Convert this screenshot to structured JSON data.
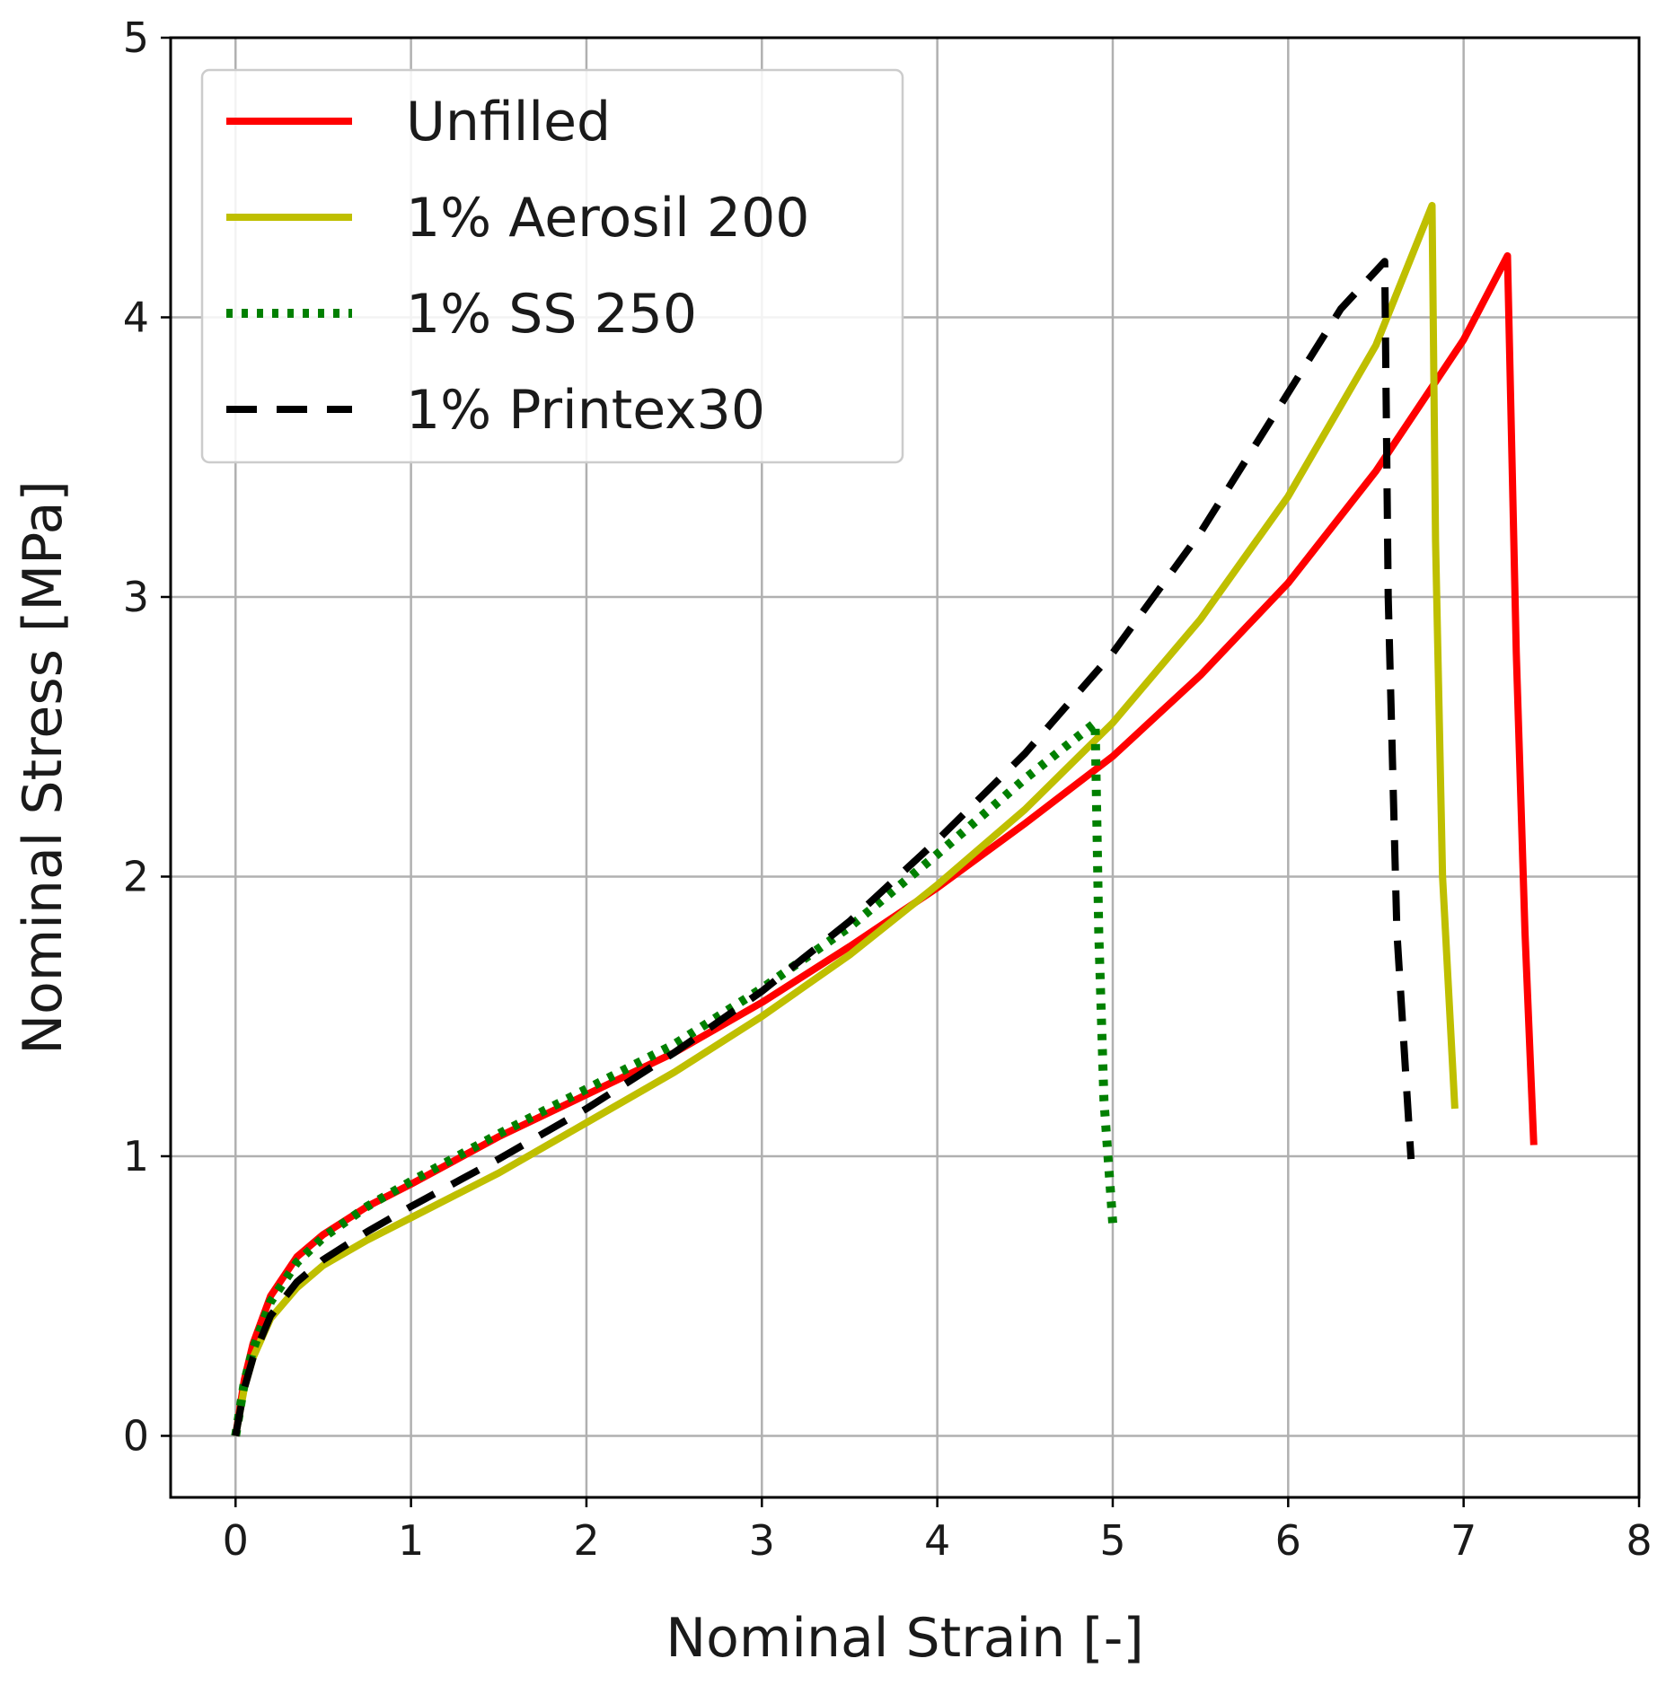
{
  "chart_data": {
    "type": "line",
    "xlabel": "Nominal Strain [-]",
    "ylabel": "Nominal Stress [MPa]",
    "xlim": [
      -0.37,
      8
    ],
    "ylim": [
      -0.22,
      5
    ],
    "xticks": [
      "0",
      "1",
      "2",
      "3",
      "4",
      "5",
      "6",
      "7",
      "8"
    ],
    "yticks": [
      "0",
      "1",
      "2",
      "3",
      "4",
      "5"
    ],
    "grid": true,
    "legend_position": "top-left",
    "series": [
      {
        "name": "Unfilled",
        "color": "#ff0000",
        "style": "solid",
        "x": [
          0,
          0.05,
          0.1,
          0.2,
          0.35,
          0.5,
          0.75,
          1.0,
          1.5,
          2.0,
          2.5,
          3.0,
          3.5,
          4.0,
          4.5,
          5.0,
          5.5,
          6.0,
          6.5,
          7.0,
          7.25,
          7.3,
          7.35,
          7.4
        ],
        "y": [
          0,
          0.2,
          0.33,
          0.5,
          0.64,
          0.72,
          0.82,
          0.9,
          1.07,
          1.22,
          1.37,
          1.55,
          1.75,
          1.96,
          2.19,
          2.43,
          2.72,
          3.05,
          3.45,
          3.92,
          4.22,
          2.8,
          1.8,
          1.04
        ]
      },
      {
        "name": "1% Aerosil 200",
        "color": "#bfbf00",
        "style": "solid",
        "x": [
          0,
          0.05,
          0.1,
          0.2,
          0.35,
          0.5,
          0.75,
          1.0,
          1.5,
          2.0,
          2.5,
          3.0,
          3.5,
          4.0,
          4.5,
          5.0,
          5.5,
          6.0,
          6.5,
          6.82,
          6.84,
          6.88,
          6.95
        ],
        "y": [
          0,
          0.17,
          0.28,
          0.42,
          0.53,
          0.61,
          0.7,
          0.78,
          0.94,
          1.12,
          1.3,
          1.5,
          1.72,
          1.97,
          2.24,
          2.55,
          2.92,
          3.36,
          3.9,
          4.4,
          3.2,
          2.0,
          1.17
        ]
      },
      {
        "name": "1% SS 250",
        "color": "#008000",
        "style": "dotted",
        "x": [
          0,
          0.05,
          0.1,
          0.2,
          0.35,
          0.5,
          0.75,
          1.0,
          1.5,
          2.0,
          2.5,
          3.0,
          3.5,
          4.0,
          4.5,
          4.9,
          4.92,
          4.95,
          5.0
        ],
        "y": [
          0,
          0.19,
          0.31,
          0.48,
          0.62,
          0.71,
          0.82,
          0.91,
          1.08,
          1.24,
          1.4,
          1.6,
          1.82,
          2.08,
          2.35,
          2.55,
          1.8,
          1.2,
          0.76
        ]
      },
      {
        "name": "1% Printex30",
        "color": "#000000",
        "style": "dashed",
        "x": [
          0,
          0.05,
          0.1,
          0.2,
          0.35,
          0.5,
          0.75,
          1.0,
          1.5,
          2.0,
          2.5,
          3.0,
          3.5,
          4.0,
          4.5,
          5.0,
          5.5,
          6.0,
          6.3,
          6.55,
          6.57,
          6.62,
          6.7
        ],
        "y": [
          0,
          0.17,
          0.28,
          0.43,
          0.55,
          0.63,
          0.73,
          0.82,
          0.99,
          1.17,
          1.37,
          1.59,
          1.84,
          2.13,
          2.44,
          2.8,
          3.23,
          3.73,
          4.03,
          4.2,
          3.0,
          1.8,
          0.99
        ]
      }
    ]
  }
}
